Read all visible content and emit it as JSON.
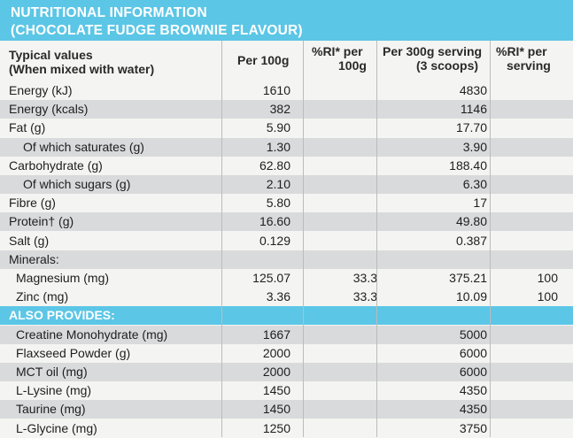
{
  "header": {
    "line1": "NUTRITIONAL INFORMATION",
    "line2": "(CHOCOLATE FUDGE BROWNIE FLAVOUR)"
  },
  "columns": {
    "c0_line1": "Typical values",
    "c0_line2": "(When mixed with water)",
    "c1": "Per 100g",
    "c2_line1": "%RI* per",
    "c2_line2": "100g",
    "c3_line1": "Per 300g serving",
    "c3_line2": "(3 scoops)",
    "c4_line1": "%RI* per",
    "c4_line2": "serving"
  },
  "rows": [
    {
      "label": "Energy (kJ)",
      "per100": "1610",
      "ri100": "",
      "per300": "4830",
      "riserv": ""
    },
    {
      "label": "Energy (kcals)",
      "per100": "382",
      "ri100": "",
      "per300": "1146",
      "riserv": ""
    },
    {
      "label": "Fat (g)",
      "per100": "5.90",
      "ri100": "",
      "per300": "17.70",
      "riserv": ""
    },
    {
      "label": "Of which saturates (g)",
      "per100": "1.30",
      "ri100": "",
      "per300": "3.90",
      "riserv": ""
    },
    {
      "label": "Carbohydrate (g)",
      "per100": "62.80",
      "ri100": "",
      "per300": "188.40",
      "riserv": ""
    },
    {
      "label": "Of which sugars (g)",
      "per100": "2.10",
      "ri100": "",
      "per300": "6.30",
      "riserv": ""
    },
    {
      "label": "Fibre (g)",
      "per100": "5.80",
      "ri100": "",
      "per300": "17",
      "riserv": ""
    },
    {
      "label": "Protein† (g)",
      "per100": "16.60",
      "ri100": "",
      "per300": "49.80",
      "riserv": ""
    },
    {
      "label": "Salt (g)",
      "per100": "0.129",
      "ri100": "",
      "per300": "0.387",
      "riserv": ""
    },
    {
      "label": "Minerals:",
      "per100": "",
      "ri100": "",
      "per300": "",
      "riserv": ""
    },
    {
      "label": "Magnesium (mg)",
      "per100": "125.07",
      "ri100": "33.3",
      "per300": "375.21",
      "riserv": "100"
    },
    {
      "label": "Zinc (mg)",
      "per100": "3.36",
      "ri100": "33.3",
      "per300": "10.09",
      "riserv": "100"
    },
    {
      "label": "ALSO PROVIDES:",
      "per100": "",
      "ri100": "",
      "per300": "",
      "riserv": ""
    },
    {
      "label": "Creatine Monohydrate (mg)",
      "per100": "1667",
      "ri100": "",
      "per300": "5000",
      "riserv": ""
    },
    {
      "label": "Flaxseed Powder (g)",
      "per100": "2000",
      "ri100": "",
      "per300": "6000",
      "riserv": ""
    },
    {
      "label": "MCT oil (mg)",
      "per100": "2000",
      "ri100": "",
      "per300": "6000",
      "riserv": ""
    },
    {
      "label": "L-Lysine (mg)",
      "per100": "1450",
      "ri100": "",
      "per300": "4350",
      "riserv": ""
    },
    {
      "label": "Taurine (mg)",
      "per100": "1450",
      "ri100": "",
      "per300": "4350",
      "riserv": ""
    },
    {
      "label": "L-Glycine (mg)",
      "per100": "1250",
      "ri100": "",
      "per300": "3750",
      "riserv": ""
    }
  ],
  "colors": {
    "accent": "#5cc6e6",
    "shade": "#d9dadb",
    "background": "#f4f4f2"
  }
}
